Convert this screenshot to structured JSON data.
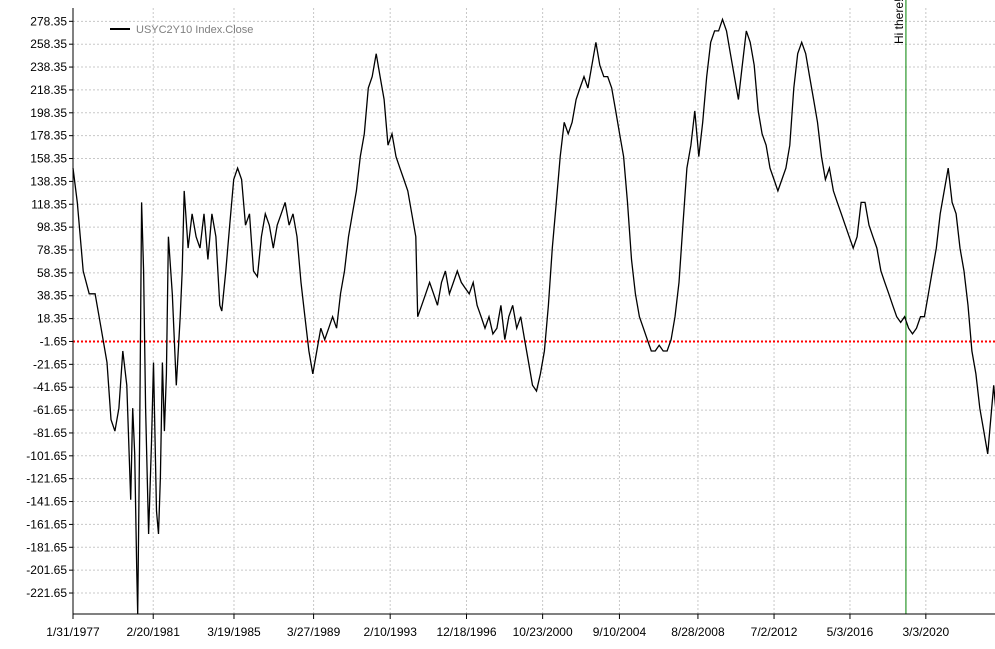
{
  "chart_data": {
    "type": "line",
    "legend": {
      "label": "USYC2Y10 Index.Close",
      "position": "top-left"
    },
    "x_tick_labels": [
      "1/31/1977",
      "2/20/1981",
      "3/19/1985",
      "3/27/1989",
      "2/10/1993",
      "12/18/1996",
      "10/23/2000",
      "9/10/2004",
      "8/28/2008",
      "7/2/2012",
      "5/3/2016",
      "3/3/2020"
    ],
    "x_range": [
      "1/31/1977",
      "9/2023"
    ],
    "y_tick_labels": [
      "278.35",
      "258.35",
      "238.35",
      "218.35",
      "198.35",
      "178.35",
      "158.35",
      "138.35",
      "118.35",
      "98.35",
      "78.35",
      "58.35",
      "38.35",
      "18.35",
      "-1.65",
      "-21.65",
      "-41.65",
      "-61.65",
      "-81.65",
      "-101.65",
      "-121.65",
      "-141.65",
      "-161.65",
      "-181.65",
      "-201.65",
      "-221.65"
    ],
    "y_range": [
      -240,
      290
    ],
    "grid": true,
    "reference_line": {
      "value": -1.65,
      "color": "#ff0000",
      "style": "dotted"
    },
    "marker": {
      "date": "3/2019",
      "label": "Hi there!",
      "color": "#008000"
    },
    "colors": {
      "series": "#000000",
      "grid": "#c8c8c8",
      "reference": "#ff0000",
      "marker": "#008000"
    },
    "series": [
      {
        "points": [
          [
            1977.08,
            150
          ],
          [
            1977.3,
            120
          ],
          [
            1977.6,
            60
          ],
          [
            1977.9,
            40
          ],
          [
            1978.2,
            40
          ],
          [
            1978.5,
            10
          ],
          [
            1978.8,
            -20
          ],
          [
            1979.0,
            -70
          ],
          [
            1979.2,
            -80
          ],
          [
            1979.4,
            -60
          ],
          [
            1979.6,
            -10
          ],
          [
            1979.8,
            -40
          ],
          [
            1980.0,
            -140
          ],
          [
            1980.1,
            -60
          ],
          [
            1980.2,
            -100
          ],
          [
            1980.3,
            -200
          ],
          [
            1980.35,
            -240
          ],
          [
            1980.45,
            -80
          ],
          [
            1980.55,
            120
          ],
          [
            1980.65,
            60
          ],
          [
            1980.75,
            -60
          ],
          [
            1980.9,
            -170
          ],
          [
            1981.05,
            -90
          ],
          [
            1981.15,
            -20
          ],
          [
            1981.3,
            -150
          ],
          [
            1981.4,
            -170
          ],
          [
            1981.5,
            -120
          ],
          [
            1981.6,
            -20
          ],
          [
            1981.7,
            -80
          ],
          [
            1981.8,
            -30
          ],
          [
            1981.9,
            90
          ],
          [
            1982.1,
            40
          ],
          [
            1982.3,
            -40
          ],
          [
            1982.5,
            20
          ],
          [
            1982.6,
            60
          ],
          [
            1982.7,
            130
          ],
          [
            1982.9,
            80
          ],
          [
            1983.1,
            110
          ],
          [
            1983.3,
            90
          ],
          [
            1983.5,
            80
          ],
          [
            1983.7,
            110
          ],
          [
            1983.9,
            70
          ],
          [
            1984.1,
            110
          ],
          [
            1984.3,
            90
          ],
          [
            1984.5,
            30
          ],
          [
            1984.6,
            25
          ],
          [
            1984.8,
            60
          ],
          [
            1985.0,
            100
          ],
          [
            1985.2,
            140
          ],
          [
            1985.4,
            150
          ],
          [
            1985.6,
            140
          ],
          [
            1985.8,
            100
          ],
          [
            1986.0,
            110
          ],
          [
            1986.2,
            60
          ],
          [
            1986.4,
            55
          ],
          [
            1986.6,
            90
          ],
          [
            1986.8,
            110
          ],
          [
            1987.0,
            100
          ],
          [
            1987.2,
            80
          ],
          [
            1987.4,
            100
          ],
          [
            1987.6,
            110
          ],
          [
            1987.8,
            120
          ],
          [
            1988.0,
            100
          ],
          [
            1988.2,
            110
          ],
          [
            1988.4,
            90
          ],
          [
            1988.6,
            50
          ],
          [
            1988.8,
            20
          ],
          [
            1989.0,
            -10
          ],
          [
            1989.2,
            -30
          ],
          [
            1989.4,
            -10
          ],
          [
            1989.6,
            10
          ],
          [
            1989.8,
            0
          ],
          [
            1990.0,
            10
          ],
          [
            1990.2,
            20
          ],
          [
            1990.4,
            10
          ],
          [
            1990.6,
            40
          ],
          [
            1990.8,
            60
          ],
          [
            1991.0,
            90
          ],
          [
            1991.2,
            110
          ],
          [
            1991.4,
            130
          ],
          [
            1991.6,
            160
          ],
          [
            1991.8,
            180
          ],
          [
            1992.0,
            220
          ],
          [
            1992.2,
            230
          ],
          [
            1992.4,
            250
          ],
          [
            1992.6,
            230
          ],
          [
            1992.8,
            210
          ],
          [
            1993.0,
            170
          ],
          [
            1993.2,
            180
          ],
          [
            1993.4,
            160
          ],
          [
            1993.6,
            150
          ],
          [
            1993.8,
            140
          ],
          [
            1994.0,
            130
          ],
          [
            1994.2,
            110
          ],
          [
            1994.4,
            90
          ],
          [
            1994.5,
            20
          ],
          [
            1994.7,
            30
          ],
          [
            1994.9,
            40
          ],
          [
            1995.1,
            50
          ],
          [
            1995.3,
            40
          ],
          [
            1995.5,
            30
          ],
          [
            1995.7,
            50
          ],
          [
            1995.9,
            60
          ],
          [
            1996.1,
            40
          ],
          [
            1996.3,
            50
          ],
          [
            1996.5,
            60
          ],
          [
            1996.7,
            50
          ],
          [
            1996.9,
            45
          ],
          [
            1997.1,
            40
          ],
          [
            1997.3,
            50
          ],
          [
            1997.5,
            30
          ],
          [
            1997.7,
            20
          ],
          [
            1997.9,
            10
          ],
          [
            1998.1,
            20
          ],
          [
            1998.3,
            5
          ],
          [
            1998.5,
            10
          ],
          [
            1998.7,
            30
          ],
          [
            1998.9,
            0
          ],
          [
            1999.1,
            20
          ],
          [
            1999.3,
            30
          ],
          [
            1999.5,
            10
          ],
          [
            1999.7,
            20
          ],
          [
            1999.9,
            0
          ],
          [
            2000.1,
            -20
          ],
          [
            2000.3,
            -40
          ],
          [
            2000.5,
            -45
          ],
          [
            2000.7,
            -30
          ],
          [
            2000.9,
            -10
          ],
          [
            2001.1,
            30
          ],
          [
            2001.3,
            80
          ],
          [
            2001.5,
            120
          ],
          [
            2001.7,
            160
          ],
          [
            2001.9,
            190
          ],
          [
            2002.1,
            180
          ],
          [
            2002.3,
            190
          ],
          [
            2002.5,
            210
          ],
          [
            2002.7,
            220
          ],
          [
            2002.9,
            230
          ],
          [
            2003.1,
            220
          ],
          [
            2003.3,
            240
          ],
          [
            2003.5,
            260
          ],
          [
            2003.7,
            240
          ],
          [
            2003.9,
            230
          ],
          [
            2004.1,
            230
          ],
          [
            2004.3,
            220
          ],
          [
            2004.5,
            200
          ],
          [
            2004.7,
            180
          ],
          [
            2004.9,
            160
          ],
          [
            2005.1,
            120
          ],
          [
            2005.3,
            70
          ],
          [
            2005.5,
            40
          ],
          [
            2005.7,
            20
          ],
          [
            2005.9,
            10
          ],
          [
            2006.1,
            0
          ],
          [
            2006.3,
            -10
          ],
          [
            2006.5,
            -10
          ],
          [
            2006.7,
            -5
          ],
          [
            2006.9,
            -10
          ],
          [
            2007.1,
            -10
          ],
          [
            2007.3,
            0
          ],
          [
            2007.5,
            20
          ],
          [
            2007.7,
            50
          ],
          [
            2007.9,
            100
          ],
          [
            2008.1,
            150
          ],
          [
            2008.3,
            170
          ],
          [
            2008.5,
            200
          ],
          [
            2008.7,
            160
          ],
          [
            2008.9,
            190
          ],
          [
            2009.1,
            230
          ],
          [
            2009.3,
            260
          ],
          [
            2009.5,
            270
          ],
          [
            2009.7,
            270
          ],
          [
            2009.9,
            280
          ],
          [
            2010.1,
            270
          ],
          [
            2010.3,
            250
          ],
          [
            2010.5,
            230
          ],
          [
            2010.7,
            210
          ],
          [
            2010.9,
            240
          ],
          [
            2011.1,
            270
          ],
          [
            2011.3,
            260
          ],
          [
            2011.5,
            240
          ],
          [
            2011.7,
            200
          ],
          [
            2011.9,
            180
          ],
          [
            2012.1,
            170
          ],
          [
            2012.3,
            150
          ],
          [
            2012.5,
            140
          ],
          [
            2012.7,
            130
          ],
          [
            2012.9,
            140
          ],
          [
            2013.1,
            150
          ],
          [
            2013.3,
            170
          ],
          [
            2013.5,
            220
          ],
          [
            2013.7,
            250
          ],
          [
            2013.9,
            260
          ],
          [
            2014.1,
            250
          ],
          [
            2014.3,
            230
          ],
          [
            2014.5,
            210
          ],
          [
            2014.7,
            190
          ],
          [
            2014.9,
            160
          ],
          [
            2015.1,
            140
          ],
          [
            2015.3,
            150
          ],
          [
            2015.5,
            130
          ],
          [
            2015.7,
            120
          ],
          [
            2015.9,
            110
          ],
          [
            2016.1,
            100
          ],
          [
            2016.3,
            90
          ],
          [
            2016.5,
            80
          ],
          [
            2016.7,
            90
          ],
          [
            2016.9,
            120
          ],
          [
            2017.1,
            120
          ],
          [
            2017.3,
            100
          ],
          [
            2017.5,
            90
          ],
          [
            2017.7,
            80
          ],
          [
            2017.9,
            60
          ],
          [
            2018.1,
            50
          ],
          [
            2018.3,
            40
          ],
          [
            2018.5,
            30
          ],
          [
            2018.7,
            20
          ],
          [
            2018.9,
            15
          ],
          [
            2019.1,
            20
          ],
          [
            2019.3,
            10
          ],
          [
            2019.5,
            5
          ],
          [
            2019.7,
            10
          ],
          [
            2019.9,
            20
          ],
          [
            2020.1,
            20
          ],
          [
            2020.3,
            40
          ],
          [
            2020.5,
            60
          ],
          [
            2020.7,
            80
          ],
          [
            2020.9,
            110
          ],
          [
            2021.1,
            130
          ],
          [
            2021.3,
            150
          ],
          [
            2021.5,
            120
          ],
          [
            2021.7,
            110
          ],
          [
            2021.9,
            80
          ],
          [
            2022.1,
            60
          ],
          [
            2022.3,
            30
          ],
          [
            2022.5,
            -10
          ],
          [
            2022.7,
            -30
          ],
          [
            2022.9,
            -60
          ],
          [
            2023.1,
            -80
          ],
          [
            2023.3,
            -100
          ],
          [
            2023.45,
            -70
          ],
          [
            2023.6,
            -40
          ],
          [
            2023.7,
            -60
          ]
        ]
      }
    ]
  }
}
